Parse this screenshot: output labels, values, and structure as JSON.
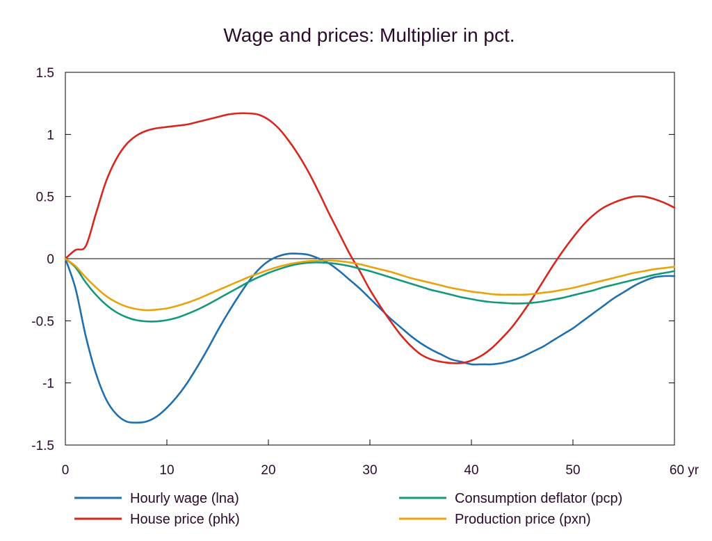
{
  "chart_data": {
    "type": "line",
    "title": "Wage and prices: Multiplier in pct.",
    "xlabel": "",
    "ylabel": "",
    "xlim": [
      0,
      60
    ],
    "ylim": [
      -1.5,
      1.5
    ],
    "x_ticks": [
      0,
      10,
      20,
      30,
      40,
      50,
      60
    ],
    "x_tick_labels": [
      "0",
      "10",
      "20",
      "30",
      "40",
      "50",
      "60 yr"
    ],
    "y_ticks": [
      -1.5,
      -1,
      -0.5,
      0,
      0.5,
      1,
      1.5
    ],
    "y_tick_labels": [
      "-1.5",
      "-1",
      "-0.5",
      "0",
      "0.5",
      "1",
      "1.5"
    ],
    "grid": false,
    "legend_position": "bottom",
    "x": [
      0,
      1,
      2,
      3,
      4,
      5,
      6,
      7,
      8,
      9,
      10,
      11,
      12,
      13,
      14,
      15,
      16,
      17,
      18,
      19,
      20,
      21,
      22,
      23,
      24,
      25,
      26,
      27,
      28,
      29,
      30,
      31,
      32,
      33,
      34,
      35,
      36,
      37,
      38,
      39,
      40,
      41,
      42,
      43,
      44,
      45,
      46,
      47,
      48,
      49,
      50,
      51,
      52,
      53,
      54,
      55,
      56,
      57,
      58,
      59,
      60
    ],
    "series": [
      {
        "name": "Hourly wage (lna)",
        "color": "#1f6fae",
        "values": [
          0,
          -0.24,
          -0.62,
          -0.92,
          -1.13,
          -1.25,
          -1.31,
          -1.32,
          -1.31,
          -1.27,
          -1.2,
          -1.11,
          -1,
          -0.87,
          -0.73,
          -0.58,
          -0.44,
          -0.31,
          -0.19,
          -0.09,
          -0.02,
          0.02,
          0.04,
          0.04,
          0.03,
          0.0,
          -0.04,
          -0.1,
          -0.17,
          -0.24,
          -0.32,
          -0.4,
          -0.48,
          -0.55,
          -0.62,
          -0.68,
          -0.73,
          -0.77,
          -0.81,
          -0.83,
          -0.85,
          -0.85,
          -0.85,
          -0.84,
          -0.82,
          -0.79,
          -0.75,
          -0.71,
          -0.66,
          -0.61,
          -0.56,
          -0.5,
          -0.44,
          -0.38,
          -0.32,
          -0.27,
          -0.22,
          -0.18,
          -0.15,
          -0.14,
          -0.14
        ]
      },
      {
        "name": "House price (phk)",
        "color": "#d9261c",
        "values": [
          0,
          0.07,
          0.1,
          0.36,
          0.62,
          0.8,
          0.92,
          0.99,
          1.03,
          1.05,
          1.06,
          1.07,
          1.08,
          1.1,
          1.12,
          1.14,
          1.16,
          1.17,
          1.17,
          1.16,
          1.12,
          1.05,
          0.95,
          0.83,
          0.69,
          0.53,
          0.36,
          0.2,
          0.04,
          -0.1,
          -0.25,
          -0.38,
          -0.5,
          -0.61,
          -0.7,
          -0.77,
          -0.81,
          -0.83,
          -0.84,
          -0.84,
          -0.82,
          -0.78,
          -0.72,
          -0.64,
          -0.55,
          -0.44,
          -0.32,
          -0.19,
          -0.06,
          0.06,
          0.17,
          0.27,
          0.35,
          0.41,
          0.45,
          0.48,
          0.5,
          0.5,
          0.48,
          0.45,
          0.41
        ]
      },
      {
        "name": "Consumption deflator (pcp)",
        "color": "#13997a",
        "values": [
          0,
          -0.07,
          -0.19,
          -0.29,
          -0.37,
          -0.43,
          -0.47,
          -0.495,
          -0.505,
          -0.505,
          -0.495,
          -0.475,
          -0.445,
          -0.41,
          -0.37,
          -0.325,
          -0.28,
          -0.235,
          -0.19,
          -0.15,
          -0.115,
          -0.085,
          -0.06,
          -0.042,
          -0.032,
          -0.03,
          -0.035,
          -0.045,
          -0.06,
          -0.08,
          -0.1,
          -0.125,
          -0.15,
          -0.175,
          -0.2,
          -0.225,
          -0.25,
          -0.27,
          -0.29,
          -0.31,
          -0.325,
          -0.34,
          -0.35,
          -0.355,
          -0.36,
          -0.36,
          -0.355,
          -0.345,
          -0.33,
          -0.315,
          -0.295,
          -0.275,
          -0.255,
          -0.23,
          -0.21,
          -0.19,
          -0.17,
          -0.15,
          -0.13,
          -0.115,
          -0.1
        ]
      },
      {
        "name": "Production price (pxn)",
        "color": "#e8a20c",
        "values": [
          0,
          -0.06,
          -0.15,
          -0.23,
          -0.3,
          -0.35,
          -0.385,
          -0.405,
          -0.415,
          -0.41,
          -0.4,
          -0.38,
          -0.355,
          -0.325,
          -0.29,
          -0.255,
          -0.22,
          -0.185,
          -0.15,
          -0.12,
          -0.09,
          -0.065,
          -0.045,
          -0.03,
          -0.02,
          -0.015,
          -0.015,
          -0.02,
          -0.03,
          -0.045,
          -0.065,
          -0.085,
          -0.105,
          -0.13,
          -0.155,
          -0.175,
          -0.195,
          -0.215,
          -0.235,
          -0.25,
          -0.265,
          -0.275,
          -0.285,
          -0.29,
          -0.29,
          -0.29,
          -0.285,
          -0.275,
          -0.265,
          -0.25,
          -0.235,
          -0.215,
          -0.195,
          -0.175,
          -0.155,
          -0.135,
          -0.115,
          -0.1,
          -0.085,
          -0.075,
          -0.065
        ]
      }
    ]
  }
}
